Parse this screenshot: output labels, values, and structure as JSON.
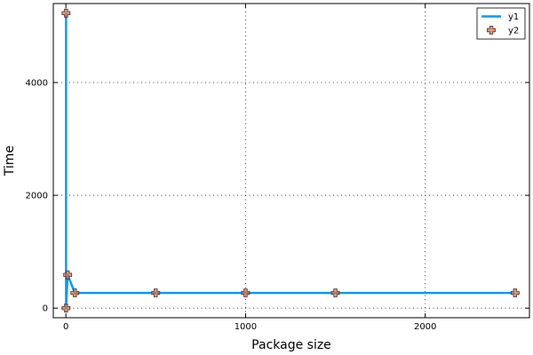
{
  "chart_data": {
    "type": "line",
    "xlabel": "Package size",
    "ylabel": "Time",
    "xlim": [
      -70,
      2580
    ],
    "ylim": [
      -170,
      5400
    ],
    "xticks": [
      0,
      1000,
      2000
    ],
    "yticks": [
      0,
      2000,
      4000
    ],
    "xtick_labels": [
      "0",
      "1000",
      "2000"
    ],
    "ytick_labels": [
      "0",
      "2000",
      "4000"
    ],
    "grid": true,
    "legend_position": "top-right",
    "x": [
      1,
      1,
      10,
      50,
      500,
      1000,
      1500,
      2500
    ],
    "series": [
      {
        "name": "y1",
        "kind": "line",
        "color": "#009af9",
        "values": [
          5230,
          0,
          590,
          270,
          270,
          270,
          270,
          270
        ]
      },
      {
        "name": "y2",
        "kind": "scatter",
        "marker": "cross",
        "color": "#e26f46",
        "values": [
          5230,
          0,
          590,
          270,
          270,
          270,
          270,
          270
        ]
      }
    ]
  }
}
